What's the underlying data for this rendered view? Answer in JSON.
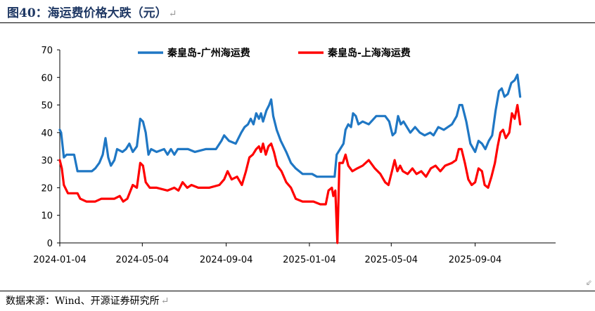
{
  "figure": {
    "title": "图40：海运费价格大跌（元）",
    "return_mark": "↵",
    "source": "数据来源：Wind、开源证券研究所"
  },
  "colors": {
    "series1": "#1f77c4",
    "series2": "#ff0000",
    "axis": "#000000"
  },
  "chart_data": {
    "type": "line",
    "title": "",
    "xlabel": "",
    "ylabel": "",
    "ylim": [
      0,
      70
    ],
    "yticks": [
      0,
      10,
      20,
      30,
      40,
      50,
      60,
      70
    ],
    "xlim": [
      "2024-01-04",
      "2025-12-31"
    ],
    "xticks": [
      "2024-01-04",
      "2024-05-04",
      "2024-09-04",
      "2025-01-04",
      "2025-05-04",
      "2025-09-04"
    ],
    "grid": false,
    "legend_position": "top",
    "series": [
      {
        "name": "秦皇岛-广州海运费",
        "points": [
          [
            "2024-01-04",
            41
          ],
          [
            "2024-01-06",
            40
          ],
          [
            "2024-01-10",
            31
          ],
          [
            "2024-01-14",
            32
          ],
          [
            "2024-01-25",
            32
          ],
          [
            "2024-01-30",
            26
          ],
          [
            "2024-02-20",
            26
          ],
          [
            "2024-02-25",
            27
          ],
          [
            "2024-03-02",
            29
          ],
          [
            "2024-03-07",
            32
          ],
          [
            "2024-03-11",
            38
          ],
          [
            "2024-03-15",
            31
          ],
          [
            "2024-03-19",
            28
          ],
          [
            "2024-03-24",
            30
          ],
          [
            "2024-03-28",
            34
          ],
          [
            "2024-04-05",
            33
          ],
          [
            "2024-04-10",
            34
          ],
          [
            "2024-04-15",
            36
          ],
          [
            "2024-04-20",
            33
          ],
          [
            "2024-04-26",
            35
          ],
          [
            "2024-05-01",
            45
          ],
          [
            "2024-05-05",
            44
          ],
          [
            "2024-05-09",
            40
          ],
          [
            "2024-05-13",
            32
          ],
          [
            "2024-05-17",
            34
          ],
          [
            "2024-05-25",
            33
          ],
          [
            "2024-06-05",
            34
          ],
          [
            "2024-06-10",
            32
          ],
          [
            "2024-06-15",
            34
          ],
          [
            "2024-06-20",
            32
          ],
          [
            "2024-06-25",
            34
          ],
          [
            "2024-07-10",
            34
          ],
          [
            "2024-07-20",
            33
          ],
          [
            "2024-08-05",
            34
          ],
          [
            "2024-08-20",
            34
          ],
          [
            "2024-08-28",
            37
          ],
          [
            "2024-09-01",
            39
          ],
          [
            "2024-09-08",
            37
          ],
          [
            "2024-09-18",
            36
          ],
          [
            "2024-09-26",
            40
          ],
          [
            "2024-10-01",
            42
          ],
          [
            "2024-10-06",
            43
          ],
          [
            "2024-10-10",
            45
          ],
          [
            "2024-10-14",
            43
          ],
          [
            "2024-10-18",
            47
          ],
          [
            "2024-10-22",
            45
          ],
          [
            "2024-10-25",
            47
          ],
          [
            "2024-10-28",
            44
          ],
          [
            "2024-11-02",
            48
          ],
          [
            "2024-11-06",
            50
          ],
          [
            "2024-11-09",
            52
          ],
          [
            "2024-11-12",
            46
          ],
          [
            "2024-11-17",
            41
          ],
          [
            "2024-11-23",
            37
          ],
          [
            "2024-12-01",
            33
          ],
          [
            "2024-12-08",
            29
          ],
          [
            "2024-12-15",
            27
          ],
          [
            "2024-12-25",
            25
          ],
          [
            "2025-01-08",
            25
          ],
          [
            "2025-01-15",
            24
          ],
          [
            "2025-02-01",
            24
          ],
          [
            "2025-02-10",
            24
          ],
          [
            "2025-02-13",
            32
          ],
          [
            "2025-02-18",
            34
          ],
          [
            "2025-02-23",
            36
          ],
          [
            "2025-02-26",
            41
          ],
          [
            "2025-03-02",
            43
          ],
          [
            "2025-03-06",
            42
          ],
          [
            "2025-03-09",
            47
          ],
          [
            "2025-03-13",
            46
          ],
          [
            "2025-03-17",
            43
          ],
          [
            "2025-03-23",
            44
          ],
          [
            "2025-04-01",
            43
          ],
          [
            "2025-04-12",
            46
          ],
          [
            "2025-04-25",
            46
          ],
          [
            "2025-05-01",
            44
          ],
          [
            "2025-05-06",
            39
          ],
          [
            "2025-05-10",
            40
          ],
          [
            "2025-05-14",
            46
          ],
          [
            "2025-05-18",
            43
          ],
          [
            "2025-05-22",
            44
          ],
          [
            "2025-06-01",
            40
          ],
          [
            "2025-06-08",
            42
          ],
          [
            "2025-06-15",
            40
          ],
          [
            "2025-06-22",
            39
          ],
          [
            "2025-06-30",
            40
          ],
          [
            "2025-07-05",
            39
          ],
          [
            "2025-07-12",
            42
          ],
          [
            "2025-07-20",
            41
          ],
          [
            "2025-08-01",
            43
          ],
          [
            "2025-08-08",
            46
          ],
          [
            "2025-08-12",
            50
          ],
          [
            "2025-08-16",
            50
          ],
          [
            "2025-08-22",
            44
          ],
          [
            "2025-08-28",
            36
          ],
          [
            "2025-09-04",
            33
          ],
          [
            "2025-09-09",
            37
          ],
          [
            "2025-09-14",
            36
          ],
          [
            "2025-09-19",
            34
          ],
          [
            "2025-09-24",
            37
          ],
          [
            "2025-09-29",
            39
          ],
          [
            "2025-10-04",
            48
          ],
          [
            "2025-10-09",
            55
          ],
          [
            "2025-10-13",
            56
          ],
          [
            "2025-10-17",
            53
          ],
          [
            "2025-10-22",
            54
          ],
          [
            "2025-10-27",
            58
          ],
          [
            "2025-11-01",
            59
          ],
          [
            "2025-11-05",
            61
          ],
          [
            "2025-11-09",
            53
          ]
        ]
      },
      {
        "name": "秦皇岛-上海海运费",
        "points": [
          [
            "2024-01-04",
            30
          ],
          [
            "2024-01-07",
            27
          ],
          [
            "2024-01-10",
            21
          ],
          [
            "2024-01-16",
            18
          ],
          [
            "2024-01-30",
            18
          ],
          [
            "2024-02-03",
            16
          ],
          [
            "2024-02-12",
            15
          ],
          [
            "2024-02-25",
            15
          ],
          [
            "2024-03-05",
            16
          ],
          [
            "2024-03-15",
            16
          ],
          [
            "2024-03-24",
            16
          ],
          [
            "2024-04-01",
            17
          ],
          [
            "2024-04-06",
            15
          ],
          [
            "2024-04-12",
            16
          ],
          [
            "2024-04-20",
            21
          ],
          [
            "2024-04-26",
            20
          ],
          [
            "2024-05-01",
            29
          ],
          [
            "2024-05-05",
            28
          ],
          [
            "2024-05-09",
            22
          ],
          [
            "2024-05-15",
            20
          ],
          [
            "2024-05-25",
            20
          ],
          [
            "2024-06-10",
            19
          ],
          [
            "2024-06-20",
            20
          ],
          [
            "2024-06-26",
            19
          ],
          [
            "2024-07-02",
            22
          ],
          [
            "2024-07-09",
            20
          ],
          [
            "2024-07-15",
            21
          ],
          [
            "2024-07-25",
            20
          ],
          [
            "2024-08-10",
            20
          ],
          [
            "2024-08-25",
            21
          ],
          [
            "2024-09-01",
            23
          ],
          [
            "2024-09-06",
            26
          ],
          [
            "2024-09-12",
            23
          ],
          [
            "2024-09-20",
            24
          ],
          [
            "2024-09-27",
            21
          ],
          [
            "2024-10-03",
            26
          ],
          [
            "2024-10-08",
            31
          ],
          [
            "2024-10-13",
            32
          ],
          [
            "2024-10-18",
            34
          ],
          [
            "2024-10-22",
            35
          ],
          [
            "2024-10-25",
            33
          ],
          [
            "2024-10-28",
            36
          ],
          [
            "2024-11-01",
            32
          ],
          [
            "2024-11-05",
            35
          ],
          [
            "2024-11-09",
            36
          ],
          [
            "2024-11-13",
            33
          ],
          [
            "2024-11-18",
            28
          ],
          [
            "2024-11-24",
            26
          ],
          [
            "2024-12-01",
            22
          ],
          [
            "2024-12-08",
            20
          ],
          [
            "2024-12-15",
            16
          ],
          [
            "2024-12-25",
            15
          ],
          [
            "2025-01-10",
            15
          ],
          [
            "2025-01-20",
            14
          ],
          [
            "2025-01-28",
            14
          ],
          [
            "2025-02-01",
            19
          ],
          [
            "2025-02-06",
            20
          ],
          [
            "2025-02-08",
            17
          ],
          [
            "2025-02-11",
            19
          ],
          [
            "2025-02-14",
            0
          ],
          [
            "2025-02-17",
            29
          ],
          [
            "2025-02-22",
            29
          ],
          [
            "2025-02-26",
            32
          ],
          [
            "2025-03-02",
            28
          ],
          [
            "2025-03-08",
            26
          ],
          [
            "2025-03-15",
            27
          ],
          [
            "2025-03-23",
            28
          ],
          [
            "2025-04-01",
            30
          ],
          [
            "2025-04-10",
            27
          ],
          [
            "2025-04-18",
            25
          ],
          [
            "2025-04-25",
            22
          ],
          [
            "2025-04-30",
            21
          ],
          [
            "2025-05-05",
            26
          ],
          [
            "2025-05-09",
            30
          ],
          [
            "2025-05-13",
            26
          ],
          [
            "2025-05-17",
            28
          ],
          [
            "2025-05-21",
            26
          ],
          [
            "2025-05-28",
            25
          ],
          [
            "2025-06-04",
            27
          ],
          [
            "2025-06-10",
            25
          ],
          [
            "2025-06-17",
            26
          ],
          [
            "2025-06-24",
            24
          ],
          [
            "2025-07-01",
            27
          ],
          [
            "2025-07-08",
            28
          ],
          [
            "2025-07-15",
            26
          ],
          [
            "2025-07-22",
            28
          ],
          [
            "2025-08-01",
            29
          ],
          [
            "2025-08-07",
            30
          ],
          [
            "2025-08-11",
            34
          ],
          [
            "2025-08-15",
            34
          ],
          [
            "2025-08-20",
            29
          ],
          [
            "2025-08-25",
            23
          ],
          [
            "2025-08-30",
            21
          ],
          [
            "2025-09-04",
            22
          ],
          [
            "2025-09-09",
            27
          ],
          [
            "2025-09-14",
            26
          ],
          [
            "2025-09-18",
            21
          ],
          [
            "2025-09-23",
            20
          ],
          [
            "2025-09-28",
            24
          ],
          [
            "2025-10-03",
            29
          ],
          [
            "2025-10-07",
            35
          ],
          [
            "2025-10-11",
            40
          ],
          [
            "2025-10-15",
            41
          ],
          [
            "2025-10-19",
            38
          ],
          [
            "2025-10-24",
            40
          ],
          [
            "2025-10-28",
            47
          ],
          [
            "2025-11-01",
            45
          ],
          [
            "2025-11-05",
            50
          ],
          [
            "2025-11-09",
            43
          ]
        ]
      }
    ]
  }
}
